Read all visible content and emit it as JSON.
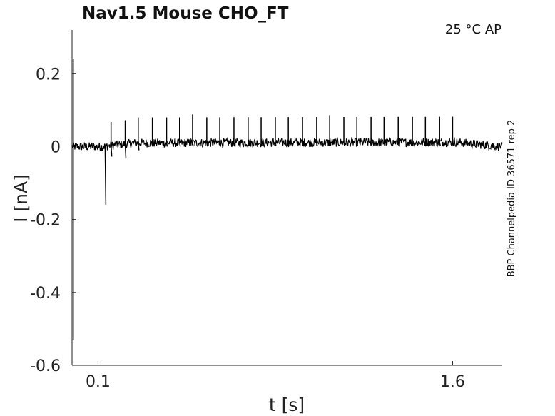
{
  "chart_data": {
    "type": "line",
    "title": "Nav1.5  Mouse  CHO_FT",
    "annotation": "25 °C  AP",
    "side_label": "BBP Channelpedia ID 36571 rep 2",
    "xlabel": "t [s]",
    "ylabel": "I [nA]",
    "xlim": [
      -0.01,
      1.81
    ],
    "ylim": [
      -0.6,
      0.32
    ],
    "xticks": [
      0.1,
      1.6
    ],
    "xtick_labels": [
      "0.1",
      "1.6"
    ],
    "yticks": [
      0.2,
      0,
      -0.2,
      -0.4,
      -0.6
    ],
    "ytick_labels": [
      "0.2",
      "0",
      "-0.2",
      "-0.4",
      "-0.6"
    ],
    "grid": false,
    "series": [
      {
        "color": "#000000",
        "baseline": [
          {
            "t": -0.01,
            "i": 0.0
          },
          {
            "t": 0.12,
            "i": 0.0
          },
          {
            "t": 0.25,
            "i": 0.01
          },
          {
            "t": 1.62,
            "i": 0.012
          },
          {
            "t": 1.81,
            "i": 0.0
          }
        ],
        "noise": 0.012,
        "initial_transient": {
          "t": -0.005,
          "min": -0.53,
          "max": 0.24
        },
        "spikes": [
          {
            "t": 0.13,
            "up": 0.0,
            "down": -0.16
          },
          {
            "t": 0.155,
            "up": 0.065,
            "down": -0.03
          },
          {
            "t": 0.215,
            "up": 0.065,
            "down": -0.04
          },
          {
            "t": 0.27,
            "up": 0.07,
            "down": -0.02
          },
          {
            "t": 0.33,
            "up": 0.07,
            "down": -0.01
          },
          {
            "t": 0.39,
            "up": 0.07,
            "down": -0.01
          },
          {
            "t": 0.445,
            "up": 0.07,
            "down": -0.01
          },
          {
            "t": 0.5,
            "up": 0.078,
            "down": -0.01
          },
          {
            "t": 0.56,
            "up": 0.07,
            "down": -0.01
          },
          {
            "t": 0.615,
            "up": 0.07,
            "down": -0.01
          },
          {
            "t": 0.675,
            "up": 0.07,
            "down": -0.01
          },
          {
            "t": 0.735,
            "up": 0.07,
            "down": -0.01
          },
          {
            "t": 0.79,
            "up": 0.07,
            "down": -0.01
          },
          {
            "t": 0.85,
            "up": 0.07,
            "down": -0.01
          },
          {
            "t": 0.905,
            "up": 0.07,
            "down": -0.01
          },
          {
            "t": 0.965,
            "up": 0.07,
            "down": -0.01
          },
          {
            "t": 1.025,
            "up": 0.07,
            "down": -0.01
          },
          {
            "t": 1.08,
            "up": 0.075,
            "down": -0.01
          },
          {
            "t": 1.14,
            "up": 0.07,
            "down": -0.01
          },
          {
            "t": 1.195,
            "up": 0.07,
            "down": -0.01
          },
          {
            "t": 1.255,
            "up": 0.07,
            "down": -0.01
          },
          {
            "t": 1.31,
            "up": 0.07,
            "down": -0.01
          },
          {
            "t": 1.37,
            "up": 0.07,
            "down": -0.01
          },
          {
            "t": 1.43,
            "up": 0.07,
            "down": -0.01
          },
          {
            "t": 1.485,
            "up": 0.07,
            "down": -0.01
          },
          {
            "t": 1.545,
            "up": 0.07,
            "down": -0.01
          },
          {
            "t": 1.6,
            "up": 0.07,
            "down": -0.01
          }
        ]
      }
    ]
  }
}
